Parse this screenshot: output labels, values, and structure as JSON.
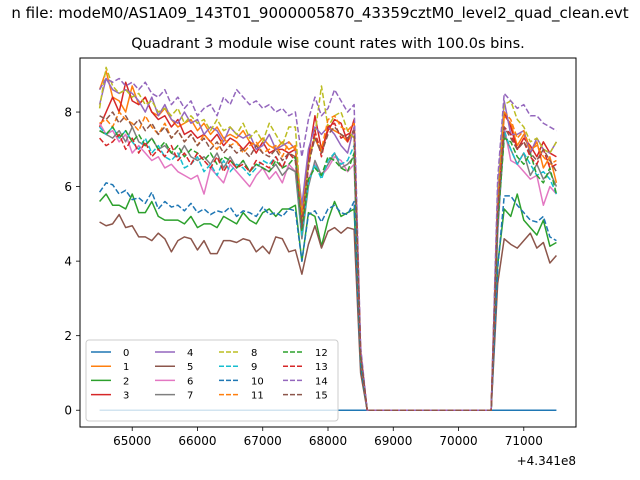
{
  "suptitle": "n file: modeM0/AS1A09_143T01_9000005870_43359cztM0_level2_quad_clean.evt",
  "chart_data": {
    "type": "line",
    "title": "Quadrant 3 module wise count rates with 100.0s bins.",
    "xlabel": "",
    "ylabel": "",
    "x_offset_label": "+4.341e8",
    "xlim": [
      64200,
      71800
    ],
    "ylim": [
      -0.45,
      9.45
    ],
    "xticks": [
      65000,
      66000,
      67000,
      68000,
      69000,
      70000,
      71000
    ],
    "yticks": [
      0,
      2,
      4,
      6,
      8
    ],
    "grid": false,
    "legend_placement": "lower-left",
    "legend_columns": 4,
    "x": [
      64500,
      64600,
      64700,
      64800,
      64900,
      65000,
      65100,
      65200,
      65300,
      65400,
      65500,
      65600,
      65700,
      65800,
      65900,
      66000,
      66100,
      66200,
      66300,
      66400,
      66500,
      66600,
      66700,
      66800,
      66900,
      67000,
      67100,
      67200,
      67300,
      67400,
      67500,
      67600,
      67700,
      67800,
      67900,
      68000,
      68100,
      68200,
      68300,
      68400,
      68500,
      68600,
      68700,
      68800,
      68900,
      69000,
      69100,
      69200,
      69300,
      69400,
      69500,
      69600,
      69700,
      69800,
      69900,
      70000,
      70100,
      70200,
      70300,
      70400,
      70500,
      70600,
      70700,
      70800,
      70900,
      71000,
      71100,
      71200,
      71300,
      71400,
      71500
    ],
    "series": [
      {
        "name": "0",
        "color": "#1f77b4",
        "dash": "solid",
        "values": [
          0,
          0,
          0,
          0,
          0,
          0,
          0,
          0,
          0,
          0,
          0,
          0,
          0,
          0,
          0,
          0,
          0,
          0,
          0,
          0,
          0,
          0,
          0,
          0,
          0,
          0,
          0,
          0,
          0,
          0,
          0,
          0,
          0,
          0,
          0,
          0,
          0,
          0,
          0,
          0,
          0,
          0,
          0,
          0,
          0,
          0,
          0,
          0,
          0,
          0,
          0,
          0,
          0,
          0,
          0,
          0,
          0,
          0,
          0,
          0,
          0,
          0,
          0,
          0,
          0,
          0,
          0,
          0,
          0,
          0,
          0
        ]
      },
      {
        "name": "1",
        "color": "#ff7f0e",
        "dash": "solid",
        "values": [
          8.6,
          9.1,
          8.4,
          8.3,
          8.0,
          8.7,
          8.2,
          8.4,
          8.0,
          7.9,
          8.1,
          7.8,
          7.6,
          7.7,
          7.8,
          7.5,
          7.7,
          7.4,
          7.6,
          7.3,
          7.4,
          7.3,
          7.5,
          7.2,
          7.1,
          7.3,
          7.1,
          7.0,
          7.2,
          7.0,
          7.1,
          5.4,
          6.8,
          7.3,
          6.9,
          7.6,
          7.5,
          7.4,
          7.2,
          7.5,
          1.5,
          0,
          0,
          0,
          0,
          0,
          0,
          0,
          0,
          0,
          0,
          0,
          0,
          0,
          0,
          0,
          0,
          0,
          0,
          0,
          0,
          5.5,
          7.9,
          7.7,
          7.1,
          7.4,
          6.9,
          7.2,
          6.5,
          6.8,
          6.1
        ]
      },
      {
        "name": "2",
        "color": "#2ca02c",
        "dash": "solid",
        "values": [
          5.6,
          5.8,
          5.5,
          5.5,
          5.4,
          5.8,
          5.3,
          5.3,
          5.6,
          5.2,
          5.1,
          5.1,
          5.1,
          5.0,
          5.2,
          4.9,
          5.0,
          5.0,
          4.9,
          5.2,
          5.1,
          5.0,
          5.3,
          5.1,
          5.0,
          5.3,
          5.4,
          5.2,
          5.4,
          5.4,
          5.5,
          4.0,
          5.3,
          5.2,
          4.4,
          5.1,
          5.6,
          5.2,
          5.3,
          5.4,
          1.3,
          0,
          0,
          0,
          0,
          0,
          0,
          0,
          0,
          0,
          0,
          0,
          0,
          0,
          0,
          0,
          0,
          0,
          0,
          0,
          0,
          3.9,
          5.4,
          5.2,
          5.8,
          5.1,
          4.9,
          4.7,
          5.1,
          4.4,
          4.5
        ]
      },
      {
        "name": "3",
        "color": "#d62728",
        "dash": "solid",
        "values": [
          7.6,
          8.0,
          8.4,
          8.0,
          8.8,
          8.3,
          8.2,
          8.4,
          8.0,
          7.8,
          7.9,
          7.6,
          7.8,
          7.4,
          7.5,
          7.3,
          7.4,
          7.2,
          7.4,
          7.1,
          7.3,
          7.2,
          7.0,
          7.2,
          6.9,
          7.2,
          6.9,
          7.0,
          7.0,
          6.9,
          7.0,
          5.1,
          6.8,
          7.9,
          7.0,
          7.5,
          7.8,
          7.7,
          7.2,
          7.8,
          1.5,
          0,
          0,
          0,
          0,
          0,
          0,
          0,
          0,
          0,
          0,
          0,
          0,
          0,
          0,
          0,
          0,
          0,
          0,
          0,
          0,
          5.6,
          8.0,
          7.6,
          7.0,
          7.3,
          7.1,
          6.8,
          7.2,
          6.9,
          6.8
        ]
      },
      {
        "name": "4",
        "color": "#9467bd",
        "dash": "solid",
        "values": [
          8.2,
          8.9,
          8.6,
          8.5,
          8.6,
          8.5,
          8.3,
          8.0,
          8.4,
          7.9,
          8.2,
          7.8,
          7.7,
          8.0,
          7.7,
          7.8,
          7.4,
          7.6,
          7.5,
          7.2,
          7.6,
          7.4,
          7.3,
          7.4,
          7.0,
          7.1,
          7.4,
          7.0,
          7.1,
          7.2,
          7.0,
          5.5,
          7.0,
          7.6,
          7.4,
          7.6,
          7.4,
          7.1,
          6.9,
          7.6,
          1.6,
          0,
          0,
          0,
          0,
          0,
          0,
          0,
          0,
          0,
          0,
          0,
          0,
          0,
          0,
          0,
          0,
          0,
          0,
          0,
          0,
          5.9,
          8.3,
          7.4,
          7.4,
          7.5,
          6.9,
          7.3,
          7.0,
          6.9,
          7.2
        ]
      },
      {
        "name": "5",
        "color": "#8c564b",
        "dash": "solid",
        "values": [
          5.05,
          4.95,
          5.0,
          5.25,
          4.9,
          4.95,
          4.65,
          4.65,
          4.55,
          4.75,
          4.6,
          4.25,
          4.55,
          4.65,
          4.6,
          4.3,
          4.55,
          4.2,
          4.2,
          4.55,
          4.55,
          4.5,
          4.6,
          4.55,
          4.25,
          4.4,
          4.2,
          4.65,
          4.6,
          4.25,
          4.3,
          3.65,
          4.45,
          4.95,
          4.35,
          4.8,
          4.9,
          4.75,
          4.9,
          4.85,
          1.0,
          0,
          0,
          0,
          0,
          0,
          0,
          0,
          0,
          0,
          0,
          0,
          0,
          0,
          0,
          0,
          0,
          0,
          0,
          0,
          0,
          3.4,
          4.6,
          4.45,
          4.35,
          4.55,
          4.75,
          4.35,
          4.5,
          3.95,
          4.15
        ]
      },
      {
        "name": "6",
        "color": "#e377c2",
        "dash": "solid",
        "values": [
          7.7,
          7.4,
          7.5,
          7.2,
          7.4,
          6.9,
          7.1,
          6.9,
          6.7,
          6.8,
          6.5,
          6.6,
          6.4,
          6.3,
          6.2,
          6.3,
          5.8,
          6.5,
          6.3,
          6.1,
          6.6,
          6.4,
          6.2,
          6.0,
          6.3,
          6.5,
          6.2,
          6.4,
          6.1,
          6.6,
          6.4,
          4.8,
          6.2,
          6.6,
          6.3,
          6.5,
          6.8,
          6.7,
          6.4,
          6.6,
          1.4,
          0,
          0,
          0,
          0,
          0,
          0,
          0,
          0,
          0,
          0,
          0,
          0,
          0,
          0,
          0,
          0,
          0,
          0,
          0,
          0,
          4.7,
          7.6,
          6.7,
          6.6,
          6.4,
          6.2,
          6.3,
          5.5,
          6.0,
          5.8
        ]
      },
      {
        "name": "7",
        "color": "#7f7f7f",
        "dash": "solid",
        "values": [
          7.5,
          7.4,
          7.3,
          7.5,
          7.2,
          7.6,
          7.2,
          7.1,
          7.3,
          7.0,
          7.1,
          6.9,
          6.8,
          7.1,
          6.8,
          6.7,
          6.8,
          6.6,
          6.9,
          6.5,
          6.8,
          6.5,
          6.7,
          6.4,
          6.6,
          6.5,
          6.4,
          6.6,
          6.3,
          6.5,
          6.4,
          4.6,
          6.0,
          6.7,
          6.3,
          6.6,
          6.9,
          6.5,
          6.6,
          6.8,
          1.4,
          0,
          0,
          0,
          0,
          0,
          0,
          0,
          0,
          0,
          0,
          0,
          0,
          0,
          0,
          0,
          0,
          0,
          0,
          0,
          0,
          4.9,
          7.4,
          7.0,
          6.6,
          6.9,
          6.3,
          6.6,
          6.2,
          6.4,
          6.0
        ]
      },
      {
        "name": "8",
        "color": "#bcbd22",
        "dash": "dashed",
        "values": [
          8.1,
          9.2,
          8.7,
          8.5,
          8.6,
          8.4,
          8.5,
          8.2,
          8.3,
          8.0,
          8.1,
          7.9,
          8.1,
          7.7,
          7.9,
          7.7,
          7.8,
          7.5,
          7.8,
          7.5,
          7.6,
          7.4,
          7.7,
          7.3,
          7.5,
          7.2,
          7.7,
          7.4,
          7.1,
          7.6,
          7.6,
          5.0,
          6.6,
          7.4,
          8.7,
          7.6,
          7.9,
          8.0,
          7.5,
          7.3,
          1.5,
          0,
          0,
          0,
          0,
          0,
          0,
          0,
          0,
          0,
          0,
          0,
          0,
          0,
          0,
          0,
          0,
          0,
          0,
          0,
          0,
          5.8,
          8.2,
          8.3,
          7.8,
          7.6,
          7.2,
          7.3,
          7.0,
          6.9,
          7.2
        ]
      },
      {
        "name": "9",
        "color": "#17becf",
        "dash": "dashed",
        "values": [
          7.6,
          7.4,
          7.6,
          7.3,
          7.5,
          7.2,
          7.0,
          7.3,
          6.9,
          7.1,
          6.8,
          6.7,
          6.9,
          6.5,
          6.6,
          6.8,
          6.4,
          6.6,
          6.3,
          6.7,
          6.4,
          6.6,
          6.5,
          6.3,
          6.5,
          6.7,
          6.6,
          6.8,
          6.5,
          6.9,
          6.7,
          4.7,
          6.1,
          6.6,
          6.2,
          6.7,
          6.9,
          6.6,
          6.7,
          7.1,
          1.4,
          0,
          0,
          0,
          0,
          0,
          0,
          0,
          0,
          0,
          0,
          0,
          0,
          0,
          0,
          0,
          0,
          0,
          0,
          0,
          0,
          4.9,
          7.5,
          7.0,
          6.6,
          6.9,
          6.6,
          6.3,
          6.4,
          6.2,
          5.8
        ]
      },
      {
        "name": "10",
        "color": "#1f77b4",
        "dash": "dashed",
        "values": [
          5.85,
          6.1,
          6.05,
          5.8,
          5.9,
          5.65,
          5.7,
          5.55,
          5.85,
          5.4,
          5.6,
          5.45,
          5.5,
          5.35,
          5.55,
          5.3,
          5.4,
          5.25,
          5.35,
          5.3,
          5.45,
          5.2,
          5.35,
          5.3,
          5.2,
          5.45,
          5.25,
          5.3,
          5.2,
          5.4,
          5.35,
          4.0,
          5.25,
          5.35,
          5.05,
          5.4,
          5.5,
          5.3,
          5.25,
          5.6,
          1.2,
          0,
          0,
          0,
          0,
          0,
          0,
          0,
          0,
          0,
          0,
          0,
          0,
          0,
          0,
          0,
          0,
          0,
          0,
          0,
          0,
          3.8,
          5.75,
          5.75,
          5.5,
          5.3,
          5.1,
          5.05,
          5.2,
          4.65,
          4.55
        ]
      },
      {
        "name": "11",
        "color": "#ff7f0e",
        "dash": "dashed",
        "values": [
          7.7,
          7.8,
          7.6,
          8.0,
          7.8,
          7.7,
          7.5,
          7.9,
          7.6,
          7.4,
          7.7,
          7.3,
          7.5,
          7.2,
          7.4,
          7.1,
          7.4,
          7.2,
          7.0,
          7.3,
          7.1,
          7.2,
          6.9,
          7.1,
          7.2,
          6.9,
          7.0,
          7.1,
          6.8,
          7.2,
          7.0,
          5.2,
          6.6,
          7.4,
          7.0,
          7.8,
          7.9,
          7.6,
          7.5,
          7.7,
          1.5,
          0,
          0,
          0,
          0,
          0,
          0,
          0,
          0,
          0,
          0,
          0,
          0,
          0,
          0,
          0,
          0,
          0,
          0,
          0,
          0,
          5.4,
          8.0,
          7.8,
          7.3,
          7.5,
          7.0,
          7.1,
          6.8,
          6.6,
          6.7
        ]
      },
      {
        "name": "12",
        "color": "#2ca02c",
        "dash": "dashed",
        "values": [
          7.5,
          7.4,
          7.6,
          7.3,
          7.5,
          7.2,
          7.4,
          7.1,
          7.3,
          7.0,
          7.2,
          6.9,
          7.1,
          6.8,
          7.0,
          6.9,
          6.7,
          6.9,
          6.6,
          6.8,
          6.7,
          6.5,
          6.7,
          6.4,
          6.6,
          6.5,
          6.4,
          6.7,
          6.5,
          6.6,
          6.8,
          4.8,
          6.2,
          6.5,
          6.3,
          6.8,
          6.7,
          6.5,
          6.4,
          6.9,
          1.4,
          0,
          0,
          0,
          0,
          0,
          0,
          0,
          0,
          0,
          0,
          0,
          0,
          0,
          0,
          0,
          0,
          0,
          0,
          0,
          0,
          5.0,
          7.3,
          7.2,
          6.8,
          6.6,
          6.9,
          6.3,
          6.1,
          6.5,
          5.8
        ]
      },
      {
        "name": "13",
        "color": "#d62728",
        "dash": "dashed",
        "values": [
          7.3,
          7.1,
          7.2,
          7.4,
          7.0,
          7.3,
          6.9,
          7.2,
          6.8,
          7.0,
          6.8,
          7.1,
          6.7,
          6.9,
          6.6,
          6.9,
          6.7,
          6.5,
          6.8,
          6.4,
          6.7,
          6.5,
          6.6,
          6.4,
          6.7,
          6.6,
          6.5,
          6.8,
          6.5,
          6.9,
          6.7,
          5.0,
          6.5,
          7.5,
          6.8,
          7.6,
          7.7,
          7.3,
          7.4,
          7.5,
          1.5,
          0,
          0,
          0,
          0,
          0,
          0,
          0,
          0,
          0,
          0,
          0,
          0,
          0,
          0,
          0,
          0,
          0,
          0,
          0,
          0,
          5.3,
          7.6,
          7.4,
          7.0,
          7.2,
          6.8,
          6.6,
          7.0,
          6.5,
          6.6
        ]
      },
      {
        "name": "14",
        "color": "#9467bd",
        "dash": "dashed",
        "values": [
          8.6,
          8.9,
          8.8,
          8.9,
          8.7,
          8.8,
          8.6,
          8.8,
          8.5,
          8.4,
          8.6,
          8.2,
          8.4,
          8.1,
          8.3,
          7.9,
          8.1,
          8.2,
          7.9,
          8.4,
          8.2,
          8.6,
          8.4,
          8.2,
          8.3,
          8.1,
          8.2,
          8.0,
          8.1,
          7.9,
          8.0,
          6.8,
          7.8,
          8.4,
          7.9,
          8.1,
          8.6,
          8.3,
          8.0,
          8.2,
          1.7,
          0,
          0,
          0,
          0,
          0,
          0,
          0,
          0,
          0,
          0,
          0,
          0,
          0,
          0,
          0,
          0,
          0,
          0,
          0,
          0,
          6.2,
          8.5,
          8.3,
          8.1,
          8.2,
          7.9,
          7.9,
          7.7,
          7.6,
          7.5
        ]
      },
      {
        "name": "15",
        "color": "#8c564b",
        "dash": "dashed",
        "values": [
          7.9,
          7.8,
          8.0,
          7.7,
          7.9,
          7.6,
          7.8,
          7.5,
          7.7,
          7.4,
          7.6,
          7.3,
          7.5,
          7.2,
          7.4,
          7.1,
          7.3,
          7.0,
          7.2,
          6.9,
          7.1,
          6.9,
          7.0,
          6.8,
          7.1,
          6.9,
          6.8,
          7.0,
          6.7,
          6.9,
          6.8,
          4.9,
          6.6,
          7.3,
          6.9,
          7.4,
          7.6,
          7.4,
          7.3,
          7.5,
          1.5,
          0,
          0,
          0,
          0,
          0,
          0,
          0,
          0,
          0,
          0,
          0,
          0,
          0,
          0,
          0,
          0,
          0,
          0,
          0,
          0,
          5.2,
          7.6,
          7.3,
          7.0,
          7.2,
          6.9,
          6.7,
          7.0,
          6.7,
          6.4
        ]
      }
    ]
  }
}
